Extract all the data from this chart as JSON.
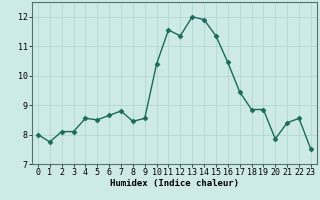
{
  "x": [
    0,
    1,
    2,
    3,
    4,
    5,
    6,
    7,
    8,
    9,
    10,
    11,
    12,
    13,
    14,
    15,
    16,
    17,
    18,
    19,
    20,
    21,
    22,
    23
  ],
  "y": [
    8.0,
    7.75,
    8.1,
    8.1,
    8.55,
    8.5,
    8.65,
    8.8,
    8.45,
    8.55,
    10.4,
    11.55,
    11.35,
    12.0,
    11.9,
    11.35,
    10.45,
    9.45,
    8.85,
    8.85,
    7.85,
    8.4,
    8.55,
    7.5
  ],
  "line_color": "#1a6b5a",
  "marker": "D",
  "markersize": 2.5,
  "linewidth": 1.0,
  "bg_color": "#ceeae7",
  "grid_color": "#aed4d0",
  "xlabel": "Humidex (Indice chaleur)",
  "ylim": [
    7,
    12.5
  ],
  "xlim": [
    -0.5,
    23.5
  ],
  "yticks": [
    7,
    8,
    9,
    10,
    11,
    12
  ],
  "xticks": [
    0,
    1,
    2,
    3,
    4,
    5,
    6,
    7,
    8,
    9,
    10,
    11,
    12,
    13,
    14,
    15,
    16,
    17,
    18,
    19,
    20,
    21,
    22,
    23
  ],
  "xlabel_fontsize": 6.5,
  "tick_fontsize": 6
}
